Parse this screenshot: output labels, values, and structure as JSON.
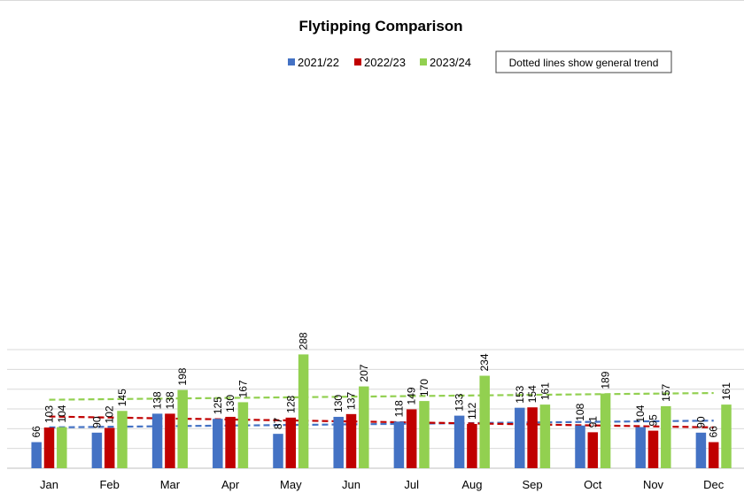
{
  "chart_data": {
    "type": "bar",
    "title": "Flytipping Comparison",
    "categories": [
      "Jan",
      "Feb",
      "Mar",
      "Apr",
      "May",
      "Jun",
      "Jul",
      "Aug",
      "Sep",
      "Oct",
      "Nov",
      "Dec"
    ],
    "series": [
      {
        "name": "2021/22",
        "color": "#4472c4",
        "values": [
          66,
          90,
          138,
          125,
          87,
          130,
          118,
          133,
          153,
          108,
          104,
          90
        ]
      },
      {
        "name": "2022/23",
        "color": "#c00000",
        "values": [
          103,
          102,
          138,
          130,
          128,
          137,
          149,
          112,
          154,
          91,
          95,
          66
        ]
      },
      {
        "name": "2023/24",
        "color": "#92d050",
        "values": [
          104,
          145,
          198,
          167,
          288,
          207,
          170,
          234,
          161,
          189,
          157,
          161
        ]
      }
    ],
    "annotation": "Dotted lines show general trend",
    "trendlines": true,
    "trendline_style": "dashed",
    "ylim": [
      0,
      320
    ],
    "grid": true,
    "legend_position": "top"
  }
}
